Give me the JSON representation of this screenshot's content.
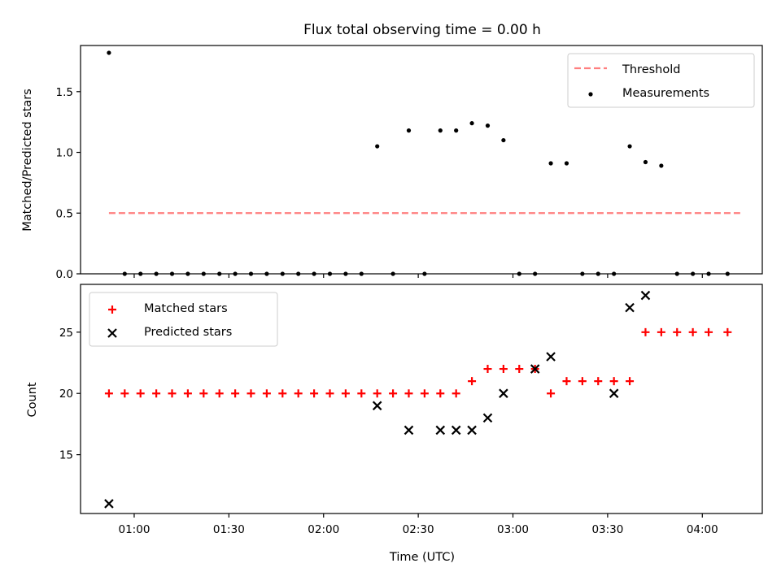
{
  "chart_data": [
    {
      "type": "scatter",
      "title": "Flux total observing time = 0.00 h",
      "xlabel": "",
      "ylabel": "Matched/Predicted stars",
      "ylim": [
        0,
        1.88
      ],
      "yticks": [
        0.0,
        0.5,
        1.0,
        1.5
      ],
      "ytick_labels": [
        "0.0",
        "0.5",
        "1.0",
        "1.5"
      ],
      "legend": {
        "placement": "top-right",
        "entries": [
          "Threshold",
          "Measurements"
        ]
      },
      "series": [
        {
          "name": "Threshold",
          "style": "dashed-line",
          "color": "#ff7f7f",
          "x": [
            "00:52",
            "04:12"
          ],
          "y": [
            0.5,
            0.5
          ]
        },
        {
          "name": "Measurements",
          "style": "dot",
          "color": "#000000",
          "x": [
            "00:52",
            "00:57",
            "01:02",
            "01:07",
            "01:12",
            "01:17",
            "01:22",
            "01:27",
            "01:32",
            "01:37",
            "01:42",
            "01:47",
            "01:52",
            "01:57",
            "02:02",
            "02:07",
            "02:12",
            "02:17",
            "02:22",
            "02:27",
            "02:32",
            "02:37",
            "02:42",
            "02:47",
            "02:52",
            "02:57",
            "03:02",
            "03:07",
            "03:12",
            "03:17",
            "03:22",
            "03:27",
            "03:32",
            "03:37",
            "03:42",
            "03:47",
            "03:52",
            "03:57",
            "04:02",
            "04:08"
          ],
          "y": [
            1.82,
            0,
            0,
            0,
            0,
            0,
            0,
            0,
            0,
            0,
            0,
            0,
            0,
            0,
            0,
            0,
            0,
            1.05,
            0,
            1.18,
            0,
            1.18,
            1.18,
            1.24,
            1.22,
            1.1,
            0,
            0,
            0.91,
            0.91,
            0,
            0,
            0,
            1.05,
            0.92,
            0.89,
            0,
            0,
            0,
            0
          ]
        }
      ]
    },
    {
      "type": "scatter",
      "title": "",
      "xlabel": "Time (UTC)",
      "ylabel": "Count",
      "ylim": [
        10.2,
        28.9
      ],
      "yticks": [
        15,
        20,
        25
      ],
      "ytick_labels": [
        "15",
        "20",
        "25"
      ],
      "xlim": [
        "00:43",
        "04:19"
      ],
      "xticks": [
        "01:00",
        "01:30",
        "02:00",
        "02:30",
        "03:00",
        "03:30",
        "04:00"
      ],
      "xtick_labels": [
        "01:00",
        "01:30",
        "02:00",
        "02:30",
        "03:00",
        "03:30",
        "04:00"
      ],
      "legend": {
        "placement": "top-left",
        "entries": [
          "Matched stars",
          "Predicted stars"
        ]
      },
      "series": [
        {
          "name": "Matched stars",
          "style": "plus",
          "color": "#ff0000",
          "x": [
            "00:52",
            "00:57",
            "01:02",
            "01:07",
            "01:12",
            "01:17",
            "01:22",
            "01:27",
            "01:32",
            "01:37",
            "01:42",
            "01:47",
            "01:52",
            "01:57",
            "02:02",
            "02:07",
            "02:12",
            "02:17",
            "02:22",
            "02:27",
            "02:32",
            "02:37",
            "02:42",
            "02:47",
            "02:52",
            "02:57",
            "03:02",
            "03:07",
            "03:12",
            "03:17",
            "03:22",
            "03:27",
            "03:32",
            "03:37",
            "03:42",
            "03:47",
            "03:52",
            "03:57",
            "04:02",
            "04:08"
          ],
          "y": [
            20,
            20,
            20,
            20,
            20,
            20,
            20,
            20,
            20,
            20,
            20,
            20,
            20,
            20,
            20,
            20,
            20,
            20,
            20,
            20,
            20,
            20,
            20,
            21,
            22,
            22,
            22,
            22,
            20,
            21,
            21,
            21,
            21,
            21,
            25,
            25,
            25,
            25,
            25,
            25
          ]
        },
        {
          "name": "Predicted stars",
          "style": "x",
          "color": "#000000",
          "x": [
            "00:52",
            "02:17",
            "02:27",
            "02:37",
            "02:42",
            "02:47",
            "02:52",
            "02:57",
            "03:07",
            "03:12",
            "03:32",
            "03:37",
            "03:42"
          ],
          "y": [
            11,
            19,
            17,
            17,
            17,
            17,
            18,
            20,
            22,
            23,
            20,
            27,
            28
          ]
        }
      ]
    }
  ]
}
